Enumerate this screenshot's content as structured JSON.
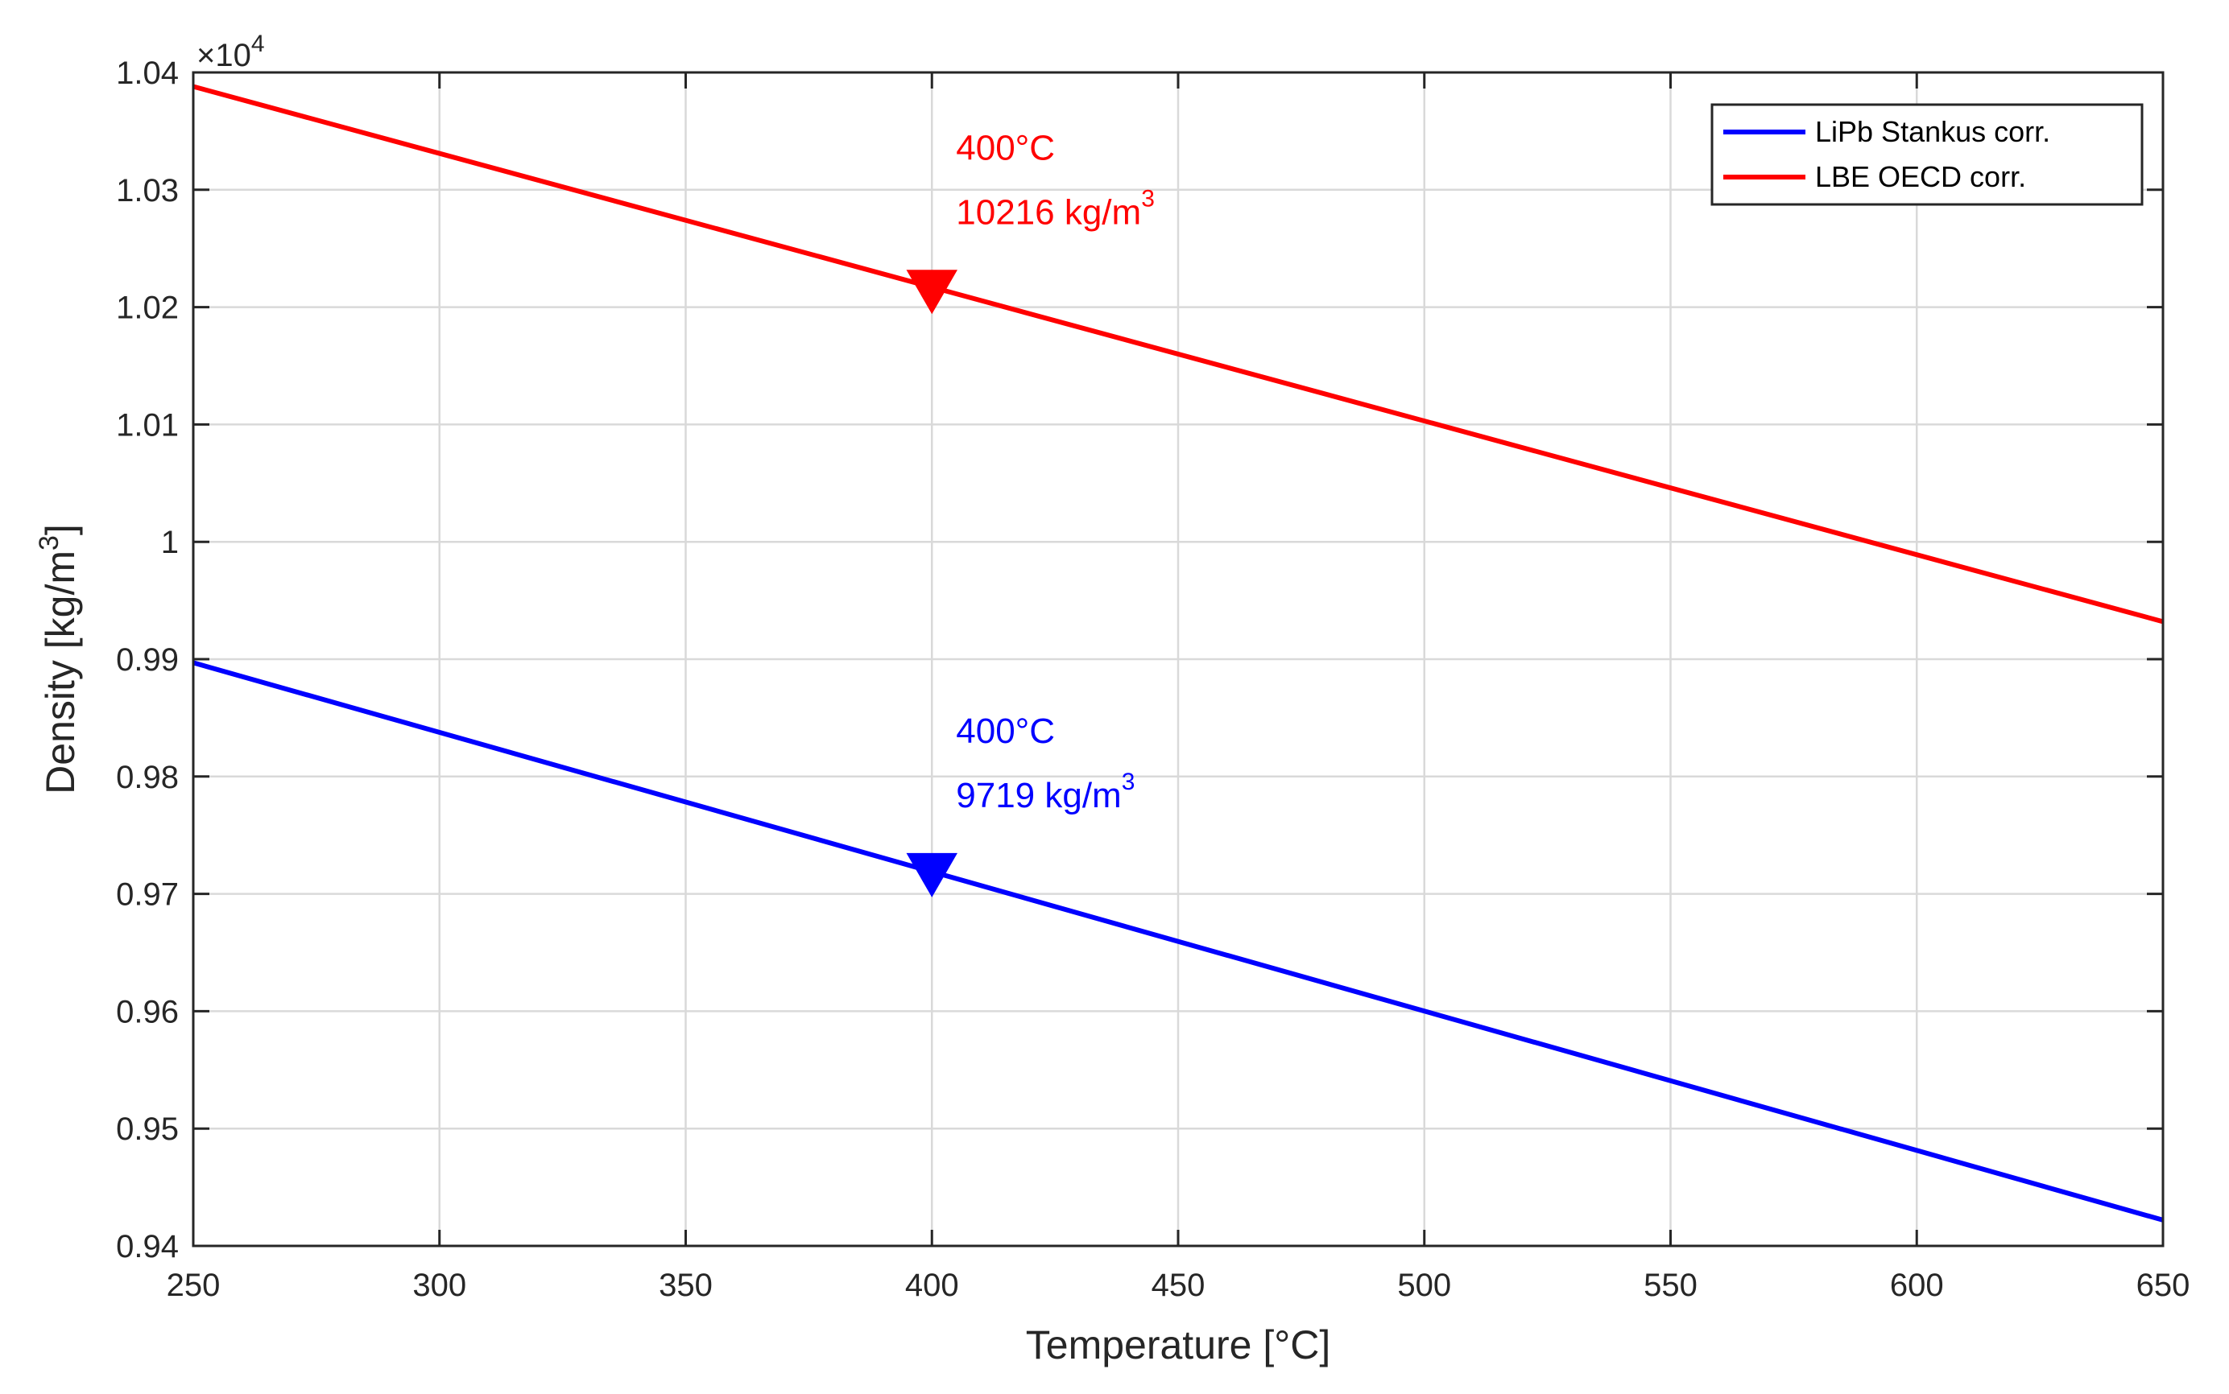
{
  "chart_data": {
    "type": "line",
    "xlabel": "Temperature [°C]",
    "ylabel": "Density [kg/m",
    "ylabel_sup": "3",
    "ylabel_close": "]",
    "xlim": [
      250,
      650
    ],
    "ylim": [
      0.94,
      1.04
    ],
    "y_multiplier": "×10",
    "y_multiplier_exp": "4",
    "x_ticks": [
      250,
      300,
      350,
      400,
      450,
      500,
      550,
      600,
      650
    ],
    "y_ticks": [
      0.94,
      0.95,
      0.96,
      0.97,
      0.98,
      0.99,
      1.0,
      1.01,
      1.02,
      1.03,
      1.04
    ],
    "y_tick_labels": [
      "0.94",
      "0.95",
      "0.96",
      "0.97",
      "0.98",
      "0.99",
      "1",
      "1.01",
      "1.02",
      "1.03",
      "1.04"
    ],
    "x_tick_labels": [
      "250",
      "300",
      "350",
      "400",
      "450",
      "500",
      "550",
      "600",
      "650"
    ],
    "grid": true,
    "legend_position": "top-right",
    "series": [
      {
        "name": "LiPb Stankus corr.",
        "color": "#0000ff",
        "x": [
          250,
          650
        ],
        "values": [
          0.9897,
          0.9422
        ],
        "marker": {
          "x": 400,
          "y": 0.9719,
          "shape": "triangle-down"
        },
        "annotation": {
          "line1": "400°C",
          "line2": "9719 kg/m",
          "sup": "3"
        }
      },
      {
        "name": "LBE OECD corr.",
        "color": "#ff0000",
        "x": [
          250,
          650
        ],
        "values": [
          1.0388,
          0.9932
        ],
        "marker": {
          "x": 400,
          "y": 1.0216,
          "shape": "triangle-down"
        },
        "annotation": {
          "line1": "400°C",
          "line2": "10216 kg/m",
          "sup": "3"
        }
      }
    ]
  }
}
